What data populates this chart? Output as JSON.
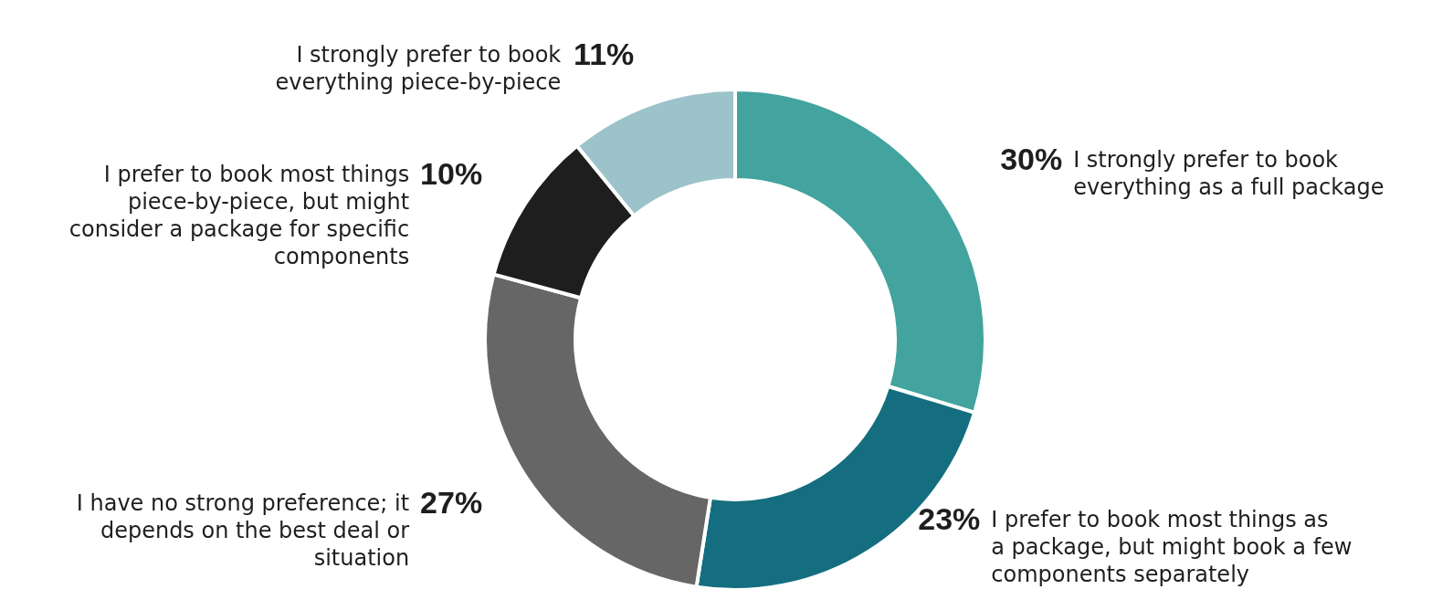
{
  "chart_data": {
    "type": "donut",
    "categories": [
      "I strongly prefer to book everything as a full package",
      "I prefer to book most things as a package, but might book a few components separately",
      "I have no strong preference; it depends on the best deal or situation",
      "I prefer to book most things piece-by-piece, but might consider a package for specific components",
      "I strongly prefer to book everything piece-by-piece"
    ],
    "values": [
      30,
      23,
      27,
      10,
      11
    ],
    "value_labels": [
      "30%",
      "23%",
      "27%",
      "10%",
      "11%"
    ],
    "colors": [
      "#42a39f",
      "#146e7f",
      "#666666",
      "#1e1e1e",
      "#9cc3ca"
    ]
  }
}
